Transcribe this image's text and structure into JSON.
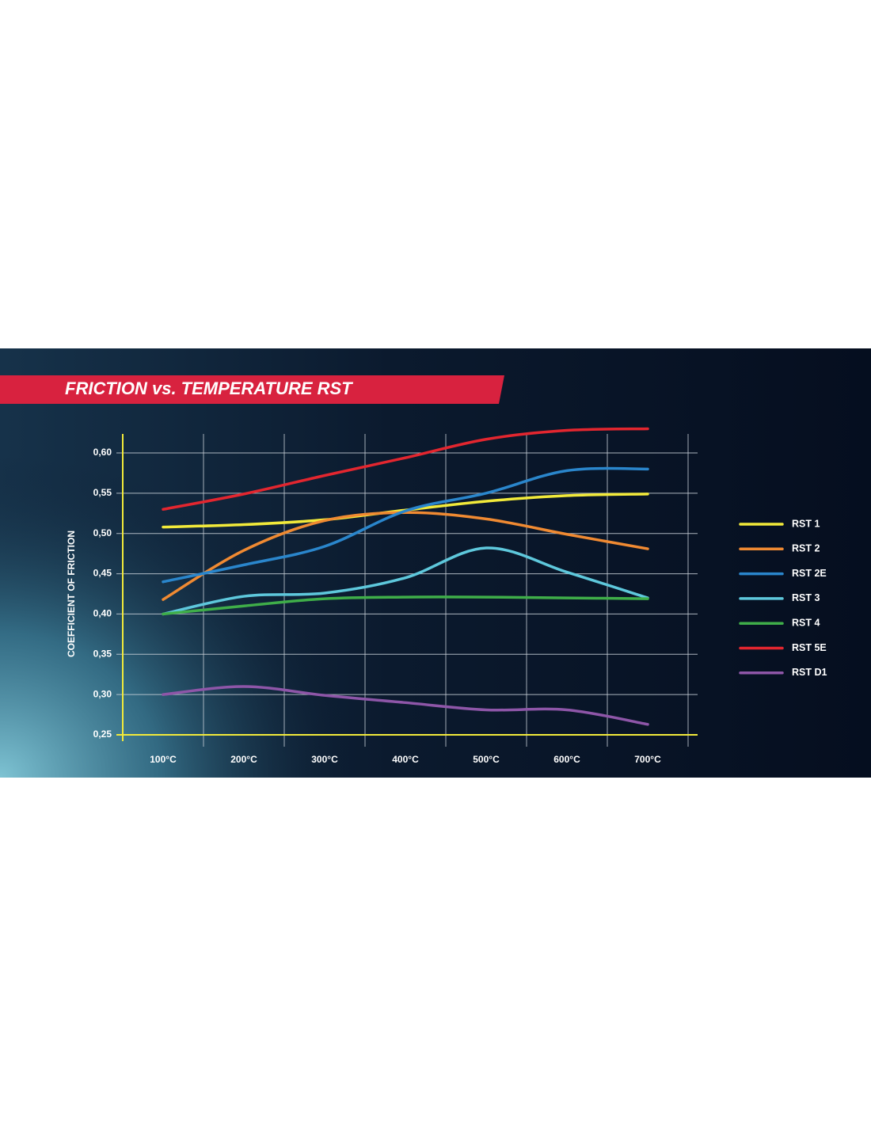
{
  "chart_data": {
    "type": "line",
    "title": "FRICTION vs. TEMPERATURE RST",
    "y_label": "COEFFICIENT OF FRICTION",
    "categories": [
      "100°C",
      "200°C",
      "300°C",
      "400°C",
      "500°C",
      "600°C",
      "700°C"
    ],
    "series": [
      {
        "name": "RST 1",
        "color": "#f2ea3a",
        "values": [
          0.508,
          0.511,
          0.517,
          0.529,
          0.54,
          0.547,
          0.549
        ]
      },
      {
        "name": "RST 2",
        "color": "#f08a32",
        "values": [
          0.418,
          0.479,
          0.516,
          0.526,
          0.518,
          0.499,
          0.481
        ]
      },
      {
        "name": "RST 2E",
        "color": "#2a86cc",
        "values": [
          0.44,
          0.461,
          0.484,
          0.528,
          0.55,
          0.578,
          0.58
        ]
      },
      {
        "name": "RST 3",
        "color": "#5ec8dc",
        "values": [
          0.4,
          0.422,
          0.426,
          0.445,
          0.482,
          0.452,
          0.42
        ]
      },
      {
        "name": "RST 4",
        "color": "#3fae49",
        "values": [
          0.4,
          0.41,
          0.419,
          0.421,
          0.421,
          0.42,
          0.419
        ]
      },
      {
        "name": "RST 5E",
        "color": "#e3262f",
        "values": [
          0.53,
          0.549,
          0.572,
          0.594,
          0.617,
          0.628,
          0.63
        ]
      },
      {
        "name": "RST D1",
        "color": "#8e56a8",
        "values": [
          0.3,
          0.31,
          0.299,
          0.29,
          0.281,
          0.281,
          0.263
        ]
      }
    ],
    "ylim": [
      0.25,
      0.6236
    ],
    "yticks": [
      {
        "value": 0.25,
        "label": "0,25"
      },
      {
        "value": 0.3,
        "label": "0,30"
      },
      {
        "value": 0.35,
        "label": "0,35"
      },
      {
        "value": 0.4,
        "label": "0,40"
      },
      {
        "value": 0.45,
        "label": "0,45"
      },
      {
        "value": 0.5,
        "label": "0,50"
      },
      {
        "value": 0.55,
        "label": "0,55"
      },
      {
        "value": 0.6,
        "label": "0,60"
      }
    ],
    "grid": true,
    "legend": "right"
  }
}
